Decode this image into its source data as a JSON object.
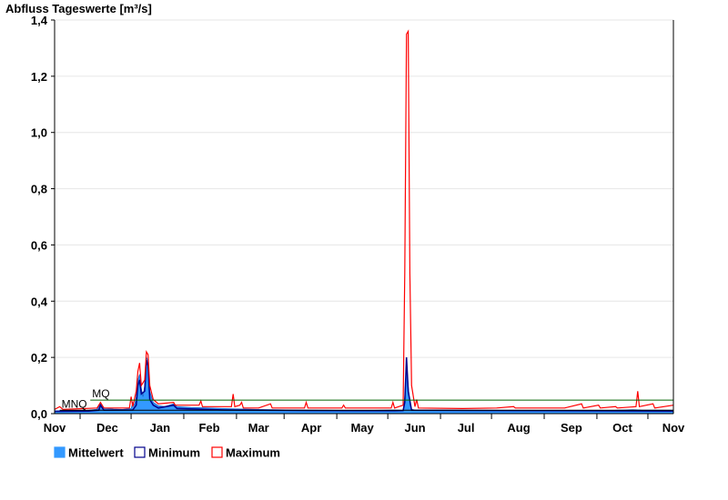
{
  "chart_data": {
    "type": "area",
    "title": "Abfluss Tageswerte [m³/s]",
    "ylim": [
      0,
      1.4
    ],
    "y_ticks": [
      "0,0",
      "0,2",
      "0,4",
      "0,6",
      "0,8",
      "1,0",
      "1,2",
      "1,4"
    ],
    "y_tick_values": [
      0,
      0.2,
      0.4,
      0.6,
      0.8,
      1.0,
      1.2,
      1.4
    ],
    "x_tick_labels": [
      "Nov",
      "Dec",
      "Jan",
      "Feb",
      "Mar",
      "Apr",
      "May",
      "Jun",
      "Jul",
      "Aug",
      "Sep",
      "Oct",
      "Nov"
    ],
    "x_label_days": [
      0,
      31,
      62,
      91,
      120,
      151,
      181,
      212,
      242,
      273,
      304,
      334,
      364
    ],
    "x_boundary_days": [
      15,
      45,
      76,
      107,
      135,
      166,
      196,
      227,
      257,
      288,
      319,
      349
    ],
    "grid": true,
    "legend_position": "bottom-left",
    "reference_lines": [
      {
        "label": "MQ",
        "value": 0.048,
        "start_day": 21,
        "color": "#006400"
      },
      {
        "label": "MNQ",
        "value": 0.012,
        "start_day": 3,
        "color": "#000000"
      }
    ],
    "series": [
      {
        "name": "Mittelwert",
        "color": "#3399ff",
        "points": [
          [
            0,
            0.01
          ],
          [
            10,
            0.011
          ],
          [
            20,
            0.012
          ],
          [
            25,
            0.016
          ],
          [
            27,
            0.035
          ],
          [
            29,
            0.02
          ],
          [
            35,
            0.016
          ],
          [
            40,
            0.015
          ],
          [
            45,
            0.018
          ],
          [
            46,
            0.04
          ],
          [
            47,
            0.03
          ],
          [
            48,
            0.06
          ],
          [
            49,
            0.12
          ],
          [
            50,
            0.14
          ],
          [
            51,
            0.09
          ],
          [
            52,
            0.06
          ],
          [
            53,
            0.1
          ],
          [
            54,
            0.2
          ],
          [
            55,
            0.19
          ],
          [
            56,
            0.08
          ],
          [
            58,
            0.04
          ],
          [
            61,
            0.028
          ],
          [
            65,
            0.025
          ],
          [
            70,
            0.035
          ],
          [
            72,
            0.025
          ],
          [
            80,
            0.022
          ],
          [
            90,
            0.02
          ],
          [
            100,
            0.018
          ],
          [
            120,
            0.015
          ],
          [
            140,
            0.013
          ],
          [
            160,
            0.012
          ],
          [
            180,
            0.011
          ],
          [
            200,
            0.013
          ],
          [
            205,
            0.012
          ],
          [
            206,
            0.06
          ],
          [
            207,
            0.18
          ],
          [
            208,
            0.1
          ],
          [
            209,
            0.03
          ],
          [
            210,
            0.016
          ],
          [
            212,
            0.013
          ],
          [
            240,
            0.012
          ],
          [
            270,
            0.01
          ],
          [
            300,
            0.011
          ],
          [
            330,
            0.012
          ],
          [
            340,
            0.014
          ],
          [
            345,
            0.013
          ],
          [
            364,
            0.012
          ]
        ]
      },
      {
        "name": "Minimum",
        "color": "#00008b",
        "points": [
          [
            0,
            0.008
          ],
          [
            20,
            0.009
          ],
          [
            26,
            0.012
          ],
          [
            27,
            0.03
          ],
          [
            29,
            0.012
          ],
          [
            46,
            0.013
          ],
          [
            48,
            0.03
          ],
          [
            49,
            0.1
          ],
          [
            50,
            0.12
          ],
          [
            51,
            0.07
          ],
          [
            53,
            0.08
          ],
          [
            54,
            0.19
          ],
          [
            55,
            0.17
          ],
          [
            56,
            0.05
          ],
          [
            58,
            0.03
          ],
          [
            61,
            0.02
          ],
          [
            70,
            0.03
          ],
          [
            72,
            0.018
          ],
          [
            100,
            0.013
          ],
          [
            150,
            0.011
          ],
          [
            200,
            0.01
          ],
          [
            205,
            0.011
          ],
          [
            206,
            0.04
          ],
          [
            207,
            0.2
          ],
          [
            208,
            0.08
          ],
          [
            210,
            0.012
          ],
          [
            364,
            0.009
          ]
        ]
      },
      {
        "name": "Maximum",
        "color": "#ff0000",
        "points": [
          [
            0,
            0.015
          ],
          [
            3,
            0.025
          ],
          [
            5,
            0.015
          ],
          [
            25,
            0.02
          ],
          [
            27,
            0.04
          ],
          [
            29,
            0.02
          ],
          [
            44,
            0.02
          ],
          [
            45,
            0.06
          ],
          [
            46,
            0.025
          ],
          [
            48,
            0.08
          ],
          [
            49,
            0.15
          ],
          [
            50,
            0.18
          ],
          [
            51,
            0.1
          ],
          [
            53,
            0.12
          ],
          [
            54,
            0.22
          ],
          [
            55,
            0.21
          ],
          [
            56,
            0.1
          ],
          [
            58,
            0.05
          ],
          [
            61,
            0.035
          ],
          [
            70,
            0.04
          ],
          [
            71,
            0.03
          ],
          [
            85,
            0.03
          ],
          [
            86,
            0.045
          ],
          [
            87,
            0.025
          ],
          [
            104,
            0.025
          ],
          [
            105,
            0.07
          ],
          [
            106,
            0.025
          ],
          [
            109,
            0.03
          ],
          [
            110,
            0.04
          ],
          [
            111,
            0.02
          ],
          [
            120,
            0.02
          ],
          [
            127,
            0.035
          ],
          [
            128,
            0.02
          ],
          [
            147,
            0.02
          ],
          [
            148,
            0.04
          ],
          [
            149,
            0.02
          ],
          [
            169,
            0.02
          ],
          [
            170,
            0.03
          ],
          [
            171,
            0.02
          ],
          [
            198,
            0.02
          ],
          [
            199,
            0.04
          ],
          [
            200,
            0.02
          ],
          [
            205,
            0.03
          ],
          [
            206,
            0.5
          ],
          [
            207,
            1.35
          ],
          [
            208,
            1.36
          ],
          [
            209,
            0.5
          ],
          [
            210,
            0.1
          ],
          [
            212,
            0.025
          ],
          [
            213,
            0.05
          ],
          [
            214,
            0.02
          ],
          [
            240,
            0.018
          ],
          [
            260,
            0.02
          ],
          [
            270,
            0.025
          ],
          [
            271,
            0.02
          ],
          [
            300,
            0.02
          ],
          [
            310,
            0.035
          ],
          [
            311,
            0.02
          ],
          [
            320,
            0.03
          ],
          [
            321,
            0.02
          ],
          [
            330,
            0.025
          ],
          [
            331,
            0.02
          ],
          [
            342,
            0.025
          ],
          [
            343,
            0.08
          ],
          [
            344,
            0.025
          ],
          [
            352,
            0.035
          ],
          [
            353,
            0.02
          ],
          [
            364,
            0.03
          ]
        ]
      }
    ]
  }
}
